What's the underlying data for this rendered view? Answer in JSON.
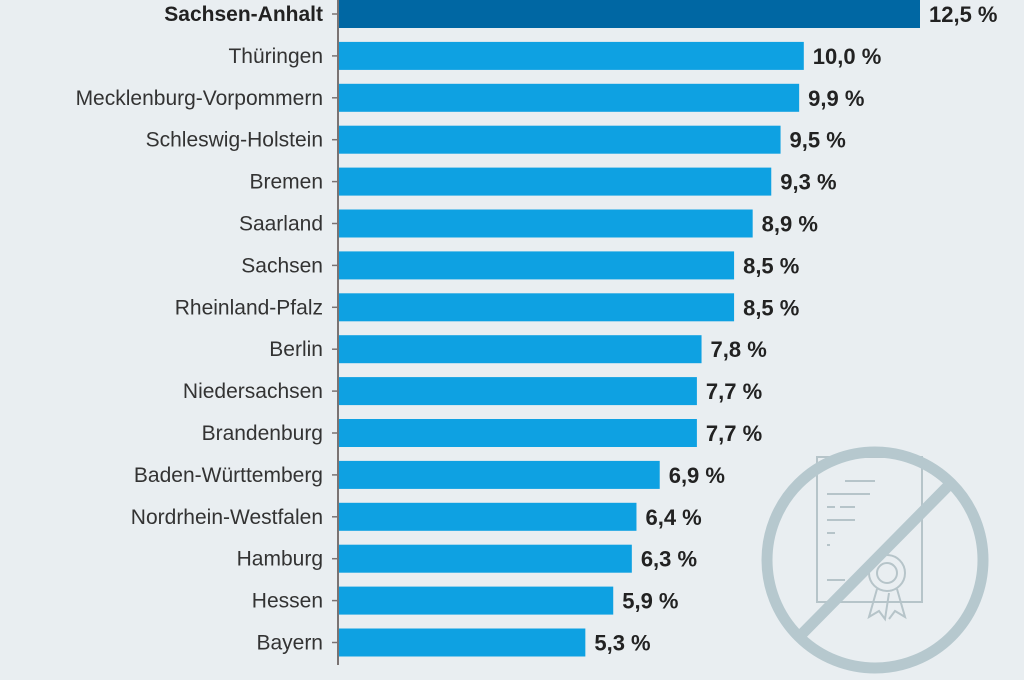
{
  "chart_data": {
    "type": "bar",
    "orientation": "horizontal",
    "title": "",
    "xlabel": "",
    "ylabel": "",
    "unit": "%",
    "xlim": [
      0,
      12.5
    ],
    "grid": false,
    "legend": "none",
    "highlight_color": "#0067a3",
    "bar_color": "#0ea1e2",
    "highlight_index": 0,
    "categories": [
      "Sachsen-Anhalt",
      "Thüringen",
      "Mecklenburg-Vorpommern",
      "Schleswig-Holstein",
      "Bremen",
      "Saarland",
      "Sachsen",
      "Rheinland-Pfalz",
      "Berlin",
      "Niedersachsen",
      "Brandenburg",
      "Baden-Württemberg",
      "Nordrhein-Westfalen",
      "Hamburg",
      "Hessen",
      "Bayern"
    ],
    "values": [
      12.5,
      10.0,
      9.9,
      9.5,
      9.3,
      8.9,
      8.5,
      8.5,
      7.8,
      7.7,
      7.7,
      6.9,
      6.4,
      6.3,
      5.9,
      5.3
    ],
    "value_labels": [
      "12,5 %",
      "10,0 %",
      "9,9 %",
      "9,5 %",
      "9,3 %",
      "8,9 %",
      "8,5 %",
      "8,5 %",
      "7,8 %",
      "7,7 %",
      "7,7 %",
      "6,9 %",
      "6,4 %",
      "6,3 %",
      "5,9 %",
      "5,3 %"
    ]
  },
  "decoration": {
    "icon": "no-certificate-icon"
  }
}
